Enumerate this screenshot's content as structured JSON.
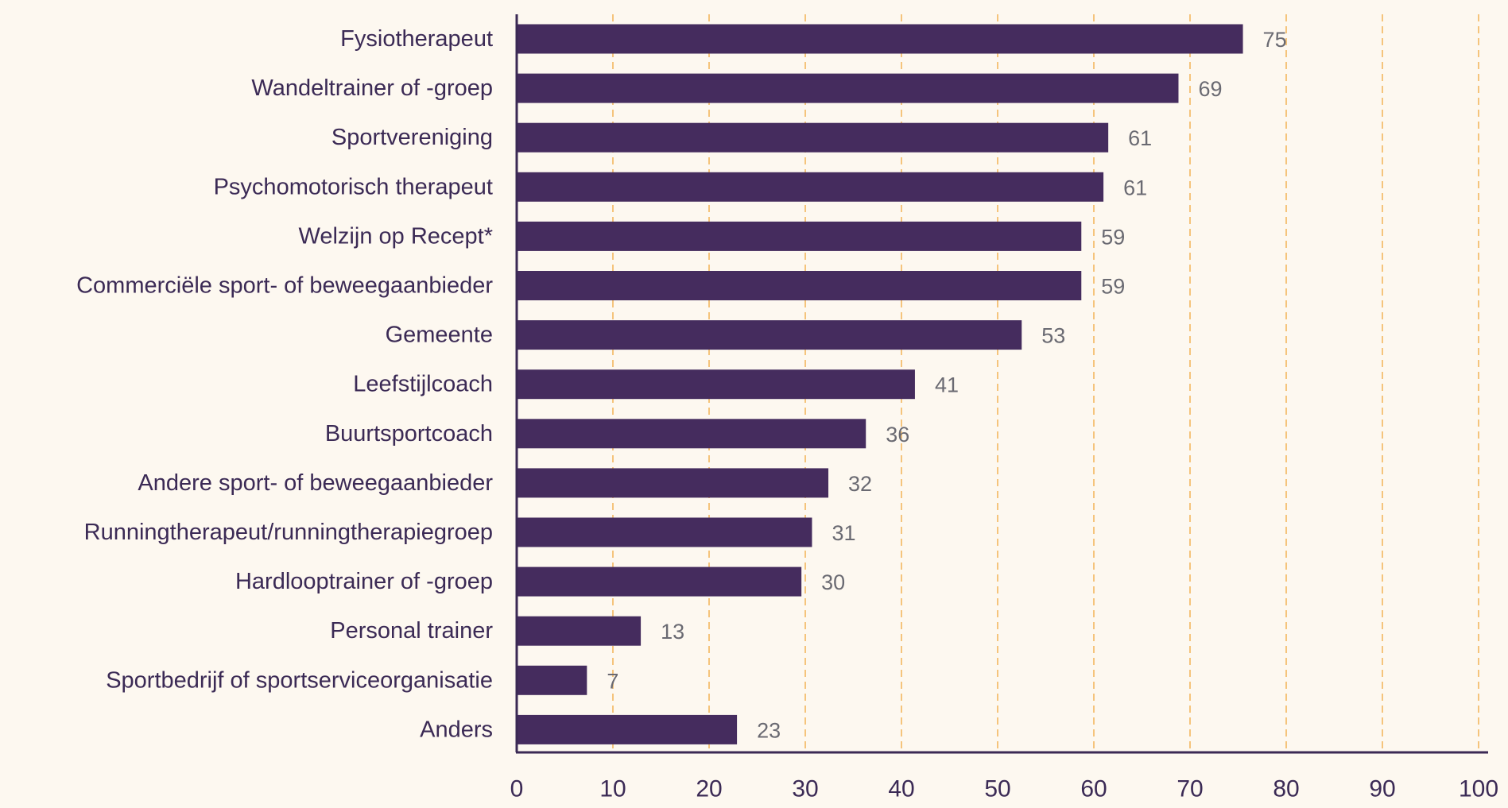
{
  "chart_data": {
    "type": "bar",
    "orientation": "horizontal",
    "categories": [
      "Fysiotherapeut",
      "Wandeltrainer of -groep",
      "Sportvereniging",
      "Psychomotorisch therapeut",
      "Welzijn op Recept*",
      "Commerciële sport- of beweegaanbieder",
      "Gemeente",
      "Leefstijlcoach",
      "Buurtsportcoach",
      "Andere sport- of beweegaanbieder",
      "Runningtherapeut/runningtherapiegroep",
      "Hardlooptrainer of -groep",
      "Personal trainer",
      "Sportbedrijf of sportserviceorganisatie",
      "Anders"
    ],
    "values": [
      75,
      69,
      61,
      61,
      59,
      59,
      53,
      41,
      36,
      32,
      31,
      30,
      13,
      7,
      23
    ],
    "plotted_values": [
      75.5,
      68.8,
      61.5,
      61.0,
      58.7,
      58.7,
      52.5,
      41.4,
      36.3,
      32.4,
      30.7,
      29.6,
      12.9,
      7.3,
      22.9
    ],
    "x_ticks": [
      "0",
      "10",
      "20",
      "30",
      "40",
      "50",
      "60",
      "70",
      "80",
      "90",
      "100"
    ],
    "xlim": [
      0,
      100
    ],
    "grid": "vertical dashed",
    "title": "",
    "xlabel": "",
    "ylabel": "",
    "colors": {
      "bar": "#452c5e",
      "grid": "#f5c47c",
      "axis": "#3b2a55",
      "background": "#fdf8f0"
    }
  }
}
